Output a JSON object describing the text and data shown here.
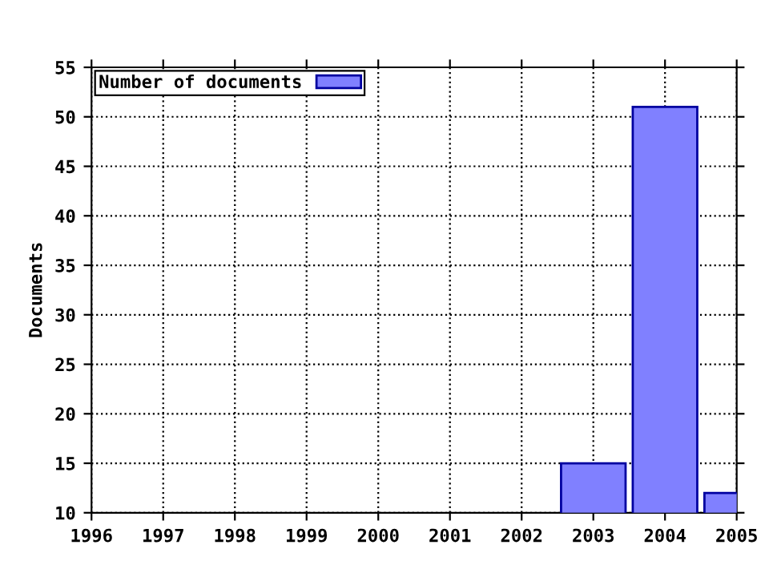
{
  "chart_data": {
    "type": "bar",
    "ylabel": "Documents",
    "x": [
      2003,
      2004,
      2005
    ],
    "series": [
      {
        "name": "Number of documents",
        "color": "#8080ff",
        "values": [
          15,
          51,
          12
        ]
      }
    ],
    "xlim": [
      1996,
      2005
    ],
    "xticks": [
      1996,
      1997,
      1998,
      1999,
      2000,
      2001,
      2002,
      2003,
      2004,
      2005
    ],
    "ylim": [
      10,
      55
    ],
    "yticks": [
      10,
      15,
      20,
      25,
      30,
      35,
      40,
      45,
      50,
      55
    ],
    "grid": true,
    "legend": "top left"
  }
}
